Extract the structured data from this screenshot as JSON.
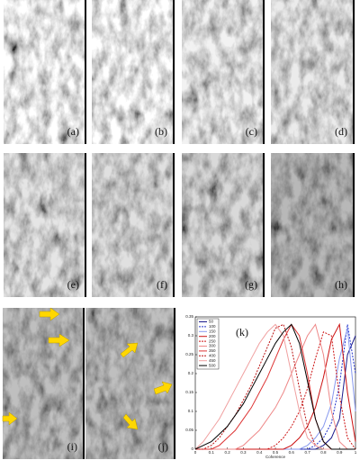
{
  "panels": [
    "(a)",
    "(b)",
    "(c)",
    "(d)",
    "(e)",
    "(f)",
    "(g)",
    "(h)",
    "(i)",
    "(j)"
  ],
  "chart_data": {
    "type": "line",
    "label": "(k)",
    "x_label": "Coherence",
    "x": [
      0,
      0.05,
      0.1,
      0.15,
      0.2,
      0.25,
      0.3,
      0.35,
      0.4,
      0.45,
      0.5,
      0.55,
      0.6,
      0.65,
      0.7,
      0.75,
      0.8,
      0.85,
      0.9,
      0.95,
      1
    ],
    "xlim": [
      0,
      1
    ],
    "xticks": [
      0,
      0.1,
      0.2,
      0.3,
      0.4,
      0.5,
      0.6,
      0.7,
      0.8,
      0.9,
      1
    ],
    "ylim": [
      0,
      0.35
    ],
    "yticks": [
      0,
      0.05,
      0.1,
      0.15,
      0.2,
      0.25,
      0.3,
      0.35
    ],
    "legend": "upper left",
    "series": [
      {
        "name": "50",
        "color": "#1a1a8c",
        "dashed": false,
        "values": [
          0,
          0,
          0,
          0,
          0,
          0,
          0,
          0,
          0,
          0,
          0,
          0,
          0,
          0,
          0,
          0,
          0.01,
          0.03,
          0.08,
          0.25,
          0.3
        ]
      },
      {
        "name": "100",
        "color": "#2233cc",
        "dashed": true,
        "values": [
          0,
          0,
          0,
          0,
          0,
          0,
          0,
          0,
          0,
          0,
          0,
          0,
          0,
          0,
          0,
          0.01,
          0.03,
          0.07,
          0.17,
          0.33,
          0.2
        ]
      },
      {
        "name": "150",
        "color": "#8899ee",
        "dashed": false,
        "values": [
          0,
          0,
          0,
          0,
          0,
          0,
          0,
          0,
          0,
          0,
          0,
          0,
          0,
          0,
          0.01,
          0.03,
          0.06,
          0.12,
          0.24,
          0.32,
          0.1
        ]
      },
      {
        "name": "200",
        "color": "#cc1111",
        "dashed": false,
        "values": [
          0,
          0,
          0,
          0,
          0,
          0,
          0,
          0,
          0,
          0,
          0,
          0,
          0.01,
          0.03,
          0.06,
          0.11,
          0.19,
          0.29,
          0.33,
          0.15,
          0.02
        ]
      },
      {
        "name": "250",
        "color": "#cc1111",
        "dashed": true,
        "values": [
          0,
          0,
          0,
          0,
          0,
          0,
          0,
          0,
          0,
          0,
          0.01,
          0.03,
          0.06,
          0.1,
          0.16,
          0.24,
          0.31,
          0.3,
          0.14,
          0.03,
          0
        ]
      },
      {
        "name": "300",
        "color": "#ee8888",
        "dashed": false,
        "values": [
          0,
          0,
          0,
          0,
          0,
          0,
          0.01,
          0.03,
          0.05,
          0.08,
          0.11,
          0.15,
          0.2,
          0.25,
          0.3,
          0.33,
          0.25,
          0.1,
          0.02,
          0,
          0
        ]
      },
      {
        "name": "350",
        "color": "#dd3333",
        "dashed": false,
        "values": [
          0,
          0,
          0,
          0.01,
          0.03,
          0.05,
          0.08,
          0.11,
          0.15,
          0.19,
          0.24,
          0.29,
          0.33,
          0.3,
          0.2,
          0.08,
          0.02,
          0,
          0,
          0,
          0
        ]
      },
      {
        "name": "400",
        "color": "#bb1111",
        "dashed": true,
        "values": [
          0,
          0,
          0.01,
          0.03,
          0.06,
          0.09,
          0.13,
          0.17,
          0.22,
          0.27,
          0.32,
          0.33,
          0.27,
          0.16,
          0.06,
          0.01,
          0,
          0,
          0,
          0,
          0
        ]
      },
      {
        "name": "450",
        "color": "#f0a0a0",
        "dashed": false,
        "values": [
          0,
          0.02,
          0.05,
          0.08,
          0.12,
          0.16,
          0.2,
          0.24,
          0.28,
          0.31,
          0.33,
          0.3,
          0.2,
          0.1,
          0.03,
          0.01,
          0,
          0,
          0,
          0,
          0
        ]
      },
      {
        "name": "500",
        "color": "#000000",
        "dashed": false,
        "values": [
          0,
          0.01,
          0.02,
          0.04,
          0.06,
          0.09,
          0.12,
          0.16,
          0.2,
          0.24,
          0.28,
          0.31,
          0.33,
          0.28,
          0.18,
          0.08,
          0.02,
          0,
          0,
          0,
          0
        ]
      }
    ]
  }
}
